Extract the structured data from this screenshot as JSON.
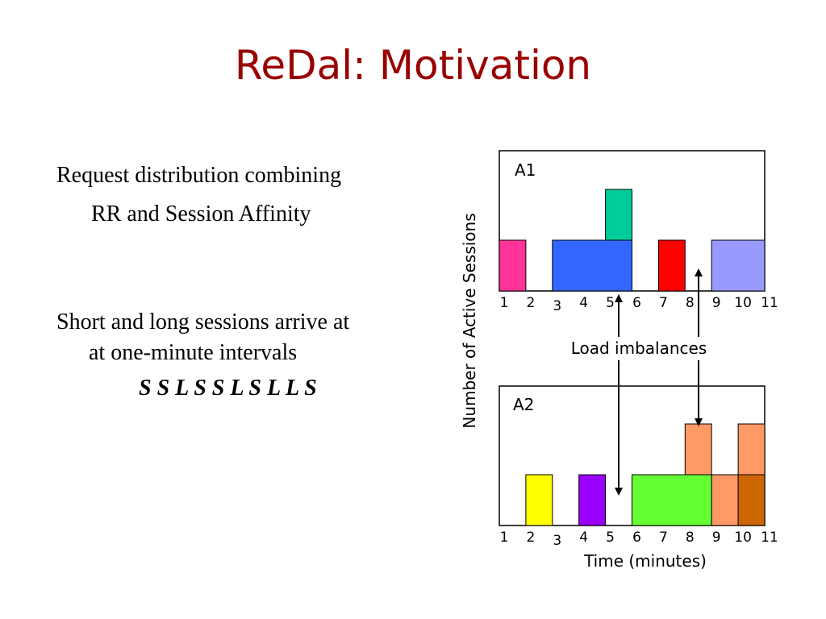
{
  "title": "ReDal: Motivation",
  "bullets": {
    "b1_line1": "Request distribution combining",
    "b1_line2": "RR and Session Affinity",
    "b2_line1": "Short and long sessions arrive at",
    "b2_line2": "at one-minute intervals",
    "sequence": "S  S L S S L S L L S"
  },
  "figure": {
    "y_label": "Number of Active Sessions",
    "x_label": "Time (minutes)",
    "annotation": "Load imbalances",
    "ticks": [
      "1",
      "2",
      "3",
      "4",
      "5",
      "6",
      "7",
      "8",
      "9",
      "10",
      "11"
    ],
    "panels": [
      {
        "name": "A1",
        "blocks": [
          {
            "start": 1,
            "end": 2,
            "level": 0,
            "color": "#ff3399"
          },
          {
            "start": 3,
            "end": 6,
            "level": 0,
            "color": "#3366ff"
          },
          {
            "start": 5,
            "end": 6,
            "level": 1,
            "color": "#00cc99"
          },
          {
            "start": 7,
            "end": 8,
            "level": 0,
            "color": "#ff0000"
          },
          {
            "start": 9,
            "end": 11,
            "level": 0,
            "color": "#9999ff"
          }
        ]
      },
      {
        "name": "A2",
        "blocks": [
          {
            "start": 2,
            "end": 3,
            "level": 0,
            "color": "#ffff00"
          },
          {
            "start": 4,
            "end": 5,
            "level": 0,
            "color": "#9900ff"
          },
          {
            "start": 6,
            "end": 9,
            "level": 0,
            "color": "#66ff33"
          },
          {
            "start": 8,
            "end": 9,
            "level": 1,
            "color": "#ff9966"
          },
          {
            "start": 9,
            "end": 10,
            "level": 0,
            "color": "#ff9966"
          },
          {
            "start": 10,
            "end": 11,
            "level": 0,
            "color": "#cc6600"
          },
          {
            "start": 10,
            "end": 11,
            "level": 1,
            "color": "#ff9966"
          }
        ]
      }
    ]
  }
}
